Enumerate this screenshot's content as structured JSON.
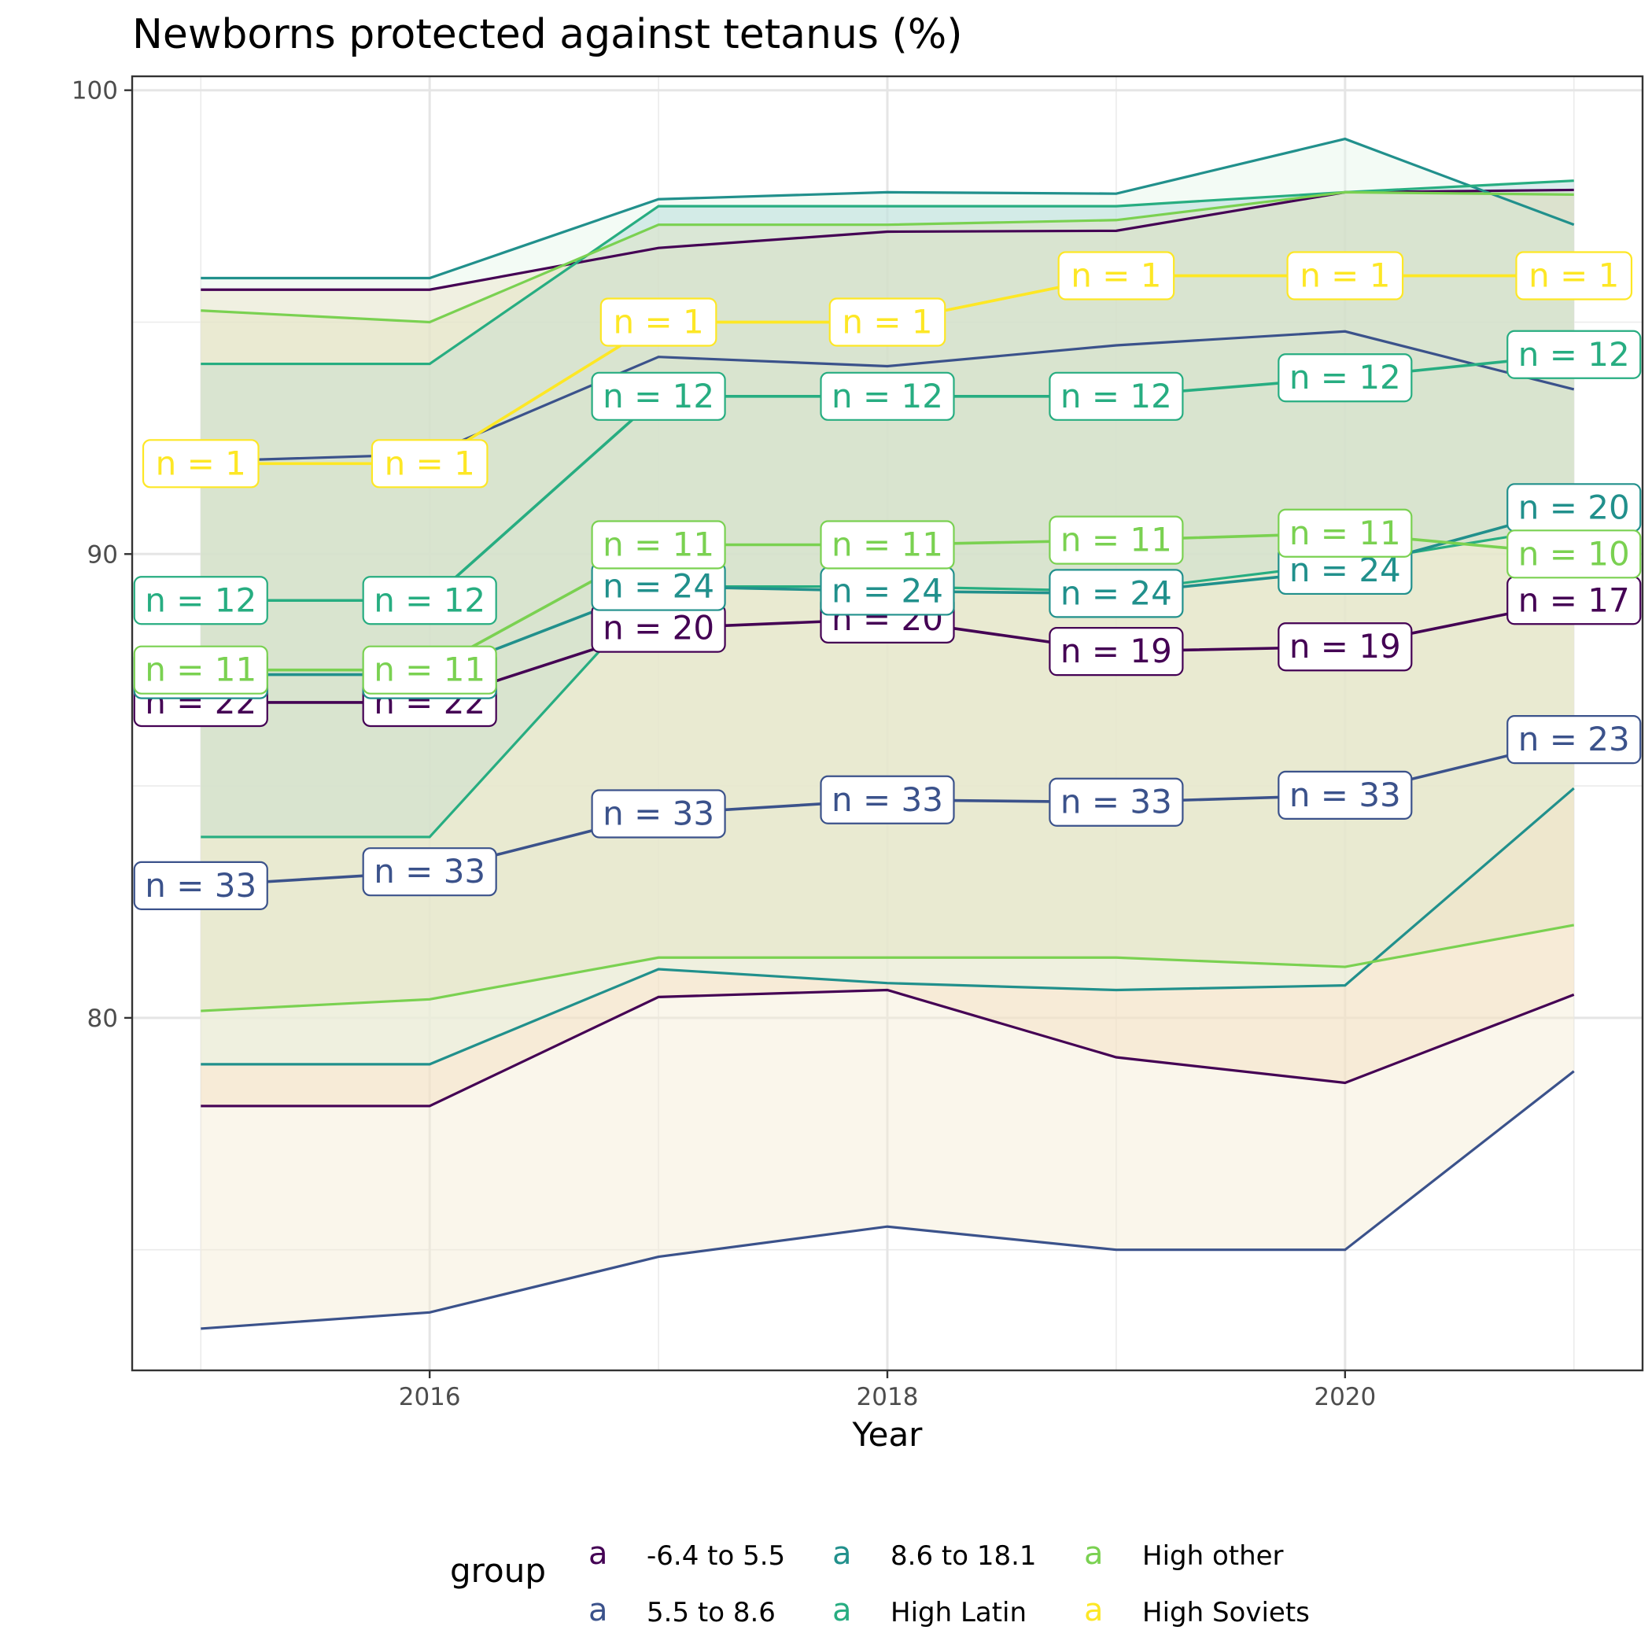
{
  "chart_data": {
    "type": "area",
    "title": "Newborns protected against tetanus (%)",
    "xlabel": "Year",
    "ylabel": "",
    "x": [
      2015,
      2016,
      2017,
      2018,
      2019,
      2020,
      2021
    ],
    "xlim": [
      2014.7,
      2021.3
    ],
    "ylim": [
      72.4,
      100.3
    ],
    "x_ticks": [
      2016,
      2018,
      2020
    ],
    "x_tick_labels": [
      "2016",
      "2018",
      "2020"
    ],
    "y_ticks": [
      80,
      90,
      100
    ],
    "y_tick_labels": [
      "80",
      "90",
      "100"
    ],
    "grid": true,
    "legend": {
      "title": "group",
      "placement": "bottom",
      "key_glyph": "a",
      "entries": [
        "-6.4 to 5.5",
        "5.5 to 8.6",
        "8.6 to 18.1",
        "High Latin",
        "High other",
        "High Soviets"
      ]
    },
    "series": [
      {
        "name": "-6.4 to 5.5",
        "color": "#440154",
        "fill": "#f5d3b0",
        "max": [
          95.7,
          95.7,
          96.6,
          96.95,
          96.97,
          97.8,
          97.85
        ],
        "min": [
          78.1,
          78.1,
          80.45,
          80.6,
          79.15,
          78.6,
          80.5
        ],
        "mean": [
          86.8,
          86.8,
          88.4,
          88.6,
          87.9,
          88.0,
          89.0
        ],
        "n": [
          22,
          22,
          20,
          20,
          19,
          19,
          17
        ]
      },
      {
        "name": "5.5 to 8.6",
        "color": "#3b528b",
        "fill": "#f3ecd3",
        "max": [
          92.0,
          92.15,
          94.25,
          94.05,
          94.5,
          94.8,
          93.55
        ],
        "min": [
          73.3,
          73.65,
          74.85,
          75.5,
          75.0,
          75.0,
          78.85
        ],
        "mean": [
          82.85,
          83.15,
          84.4,
          84.7,
          84.65,
          84.8,
          86.0
        ],
        "n": [
          33,
          33,
          33,
          33,
          33,
          33,
          23
        ]
      },
      {
        "name": "8.6 to 18.1",
        "color": "#21908c",
        "fill": "#e5f6e8",
        "max": [
          95.95,
          95.95,
          97.65,
          97.8,
          97.77,
          98.95,
          97.1
        ],
        "min": [
          79.0,
          79.0,
          81.05,
          80.75,
          80.6,
          80.7,
          84.95
        ],
        "mean": [
          87.4,
          87.4,
          89.3,
          89.2,
          89.15,
          89.65,
          91.0
        ],
        "n": [
          24,
          24,
          24,
          24,
          24,
          24,
          20
        ]
      },
      {
        "name": "High Latin",
        "color": "#27ad81",
        "fill": "#aed7d7",
        "max": [
          94.1,
          94.1,
          97.5,
          97.5,
          97.5,
          97.8,
          98.05
        ],
        "min": [
          83.9,
          83.9,
          89.3,
          89.3,
          89.2,
          89.8,
          90.6
        ],
        "mean": [
          89.0,
          89.0,
          93.4,
          93.4,
          93.4,
          93.8,
          94.3
        ],
        "n": [
          12,
          12,
          12,
          12,
          12,
          12,
          12
        ]
      },
      {
        "name": "High other",
        "color": "#7ad151",
        "fill": "#e3e2c2",
        "max": [
          95.25,
          95.0,
          97.1,
          97.1,
          97.2,
          97.8,
          97.75
        ],
        "min": [
          80.15,
          80.4,
          81.3,
          81.3,
          81.3,
          81.1,
          82.0
        ],
        "mean": [
          87.5,
          87.5,
          90.2,
          90.2,
          90.3,
          90.45,
          90.0
        ],
        "n": [
          11,
          11,
          11,
          11,
          11,
          11,
          10
        ]
      },
      {
        "name": "High Soviets",
        "color": "#fde725",
        "fill": "#fde725",
        "max": [
          91.95,
          91.95,
          95.0,
          95.0,
          96.0,
          96.0,
          96.0
        ],
        "min": [
          91.95,
          91.95,
          95.0,
          95.0,
          96.0,
          96.0,
          96.0
        ],
        "mean": [
          91.95,
          91.95,
          95.0,
          95.0,
          96.0,
          96.0,
          96.0
        ],
        "n": [
          1,
          1,
          1,
          1,
          1,
          1,
          1
        ]
      }
    ]
  }
}
